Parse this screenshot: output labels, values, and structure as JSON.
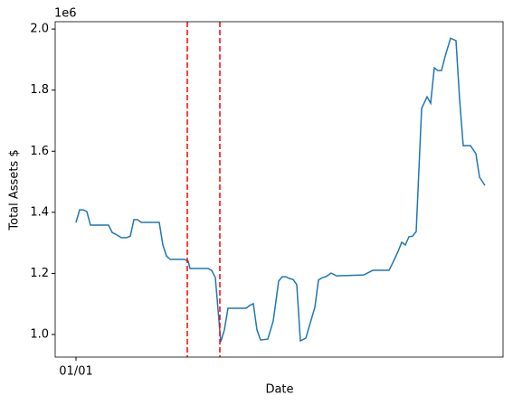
{
  "chart_data": {
    "type": "line",
    "x_label": "Date",
    "y_label": "Total Assets $",
    "y_offset_text": "1e6",
    "x": [
      0,
      1,
      2,
      3,
      4,
      9,
      10,
      11,
      12.5,
      14,
      15,
      16,
      17,
      18,
      23,
      24,
      25,
      26,
      30,
      31,
      31.5,
      36.5,
      37.5,
      38.5,
      40,
      41,
      42,
      47,
      48,
      49,
      50,
      51,
      53,
      54.5,
      56,
      57,
      58,
      59,
      60,
      61,
      62,
      63.5,
      66,
      67,
      68,
      69,
      70.5,
      72,
      79.5,
      82,
      86.5,
      87.5,
      89,
      90,
      91,
      92,
      93,
      94,
      95.5,
      97,
      98,
      99,
      100,
      101,
      102,
      103.5,
      105,
      106,
      107,
      109,
      110.5,
      111.5,
      113
    ],
    "values": [
      1.367,
      1.408,
      1.408,
      1.402,
      1.358,
      1.358,
      1.334,
      1.328,
      1.317,
      1.317,
      1.322,
      1.376,
      1.376,
      1.367,
      1.367,
      1.293,
      1.257,
      1.246,
      1.246,
      1.24,
      1.216,
      1.216,
      1.21,
      1.186,
      0.976,
      1.015,
      1.086,
      1.086,
      1.095,
      1.101,
      1.015,
      0.982,
      0.985,
      1.044,
      1.175,
      1.189,
      1.189,
      1.183,
      1.18,
      1.163,
      0.979,
      0.988,
      1.089,
      1.178,
      1.186,
      1.189,
      1.201,
      1.192,
      1.195,
      1.21,
      1.21,
      1.234,
      1.272,
      1.302,
      1.293,
      1.32,
      1.322,
      1.337,
      1.74,
      1.778,
      1.757,
      1.873,
      1.864,
      1.864,
      1.911,
      1.97,
      1.962,
      1.769,
      1.618,
      1.618,
      1.592,
      1.515,
      1.488
    ],
    "color": "#1f77b4",
    "vlines": [
      30.75,
      39.75
    ],
    "vline_color": "#ff0000",
    "vline_style": "dashed",
    "xlim": [
      -5.75,
      118
    ],
    "xticks": [
      {
        "value": 0,
        "label": "01/01"
      }
    ],
    "ylim": [
      0.926,
      2.024
    ],
    "yticks": [
      {
        "value": 1,
        "label": "1.0"
      },
      1.2,
      1.4,
      1.6,
      1.8,
      {
        "value": 2,
        "label": "2.0"
      }
    ],
    "grid": false
  }
}
